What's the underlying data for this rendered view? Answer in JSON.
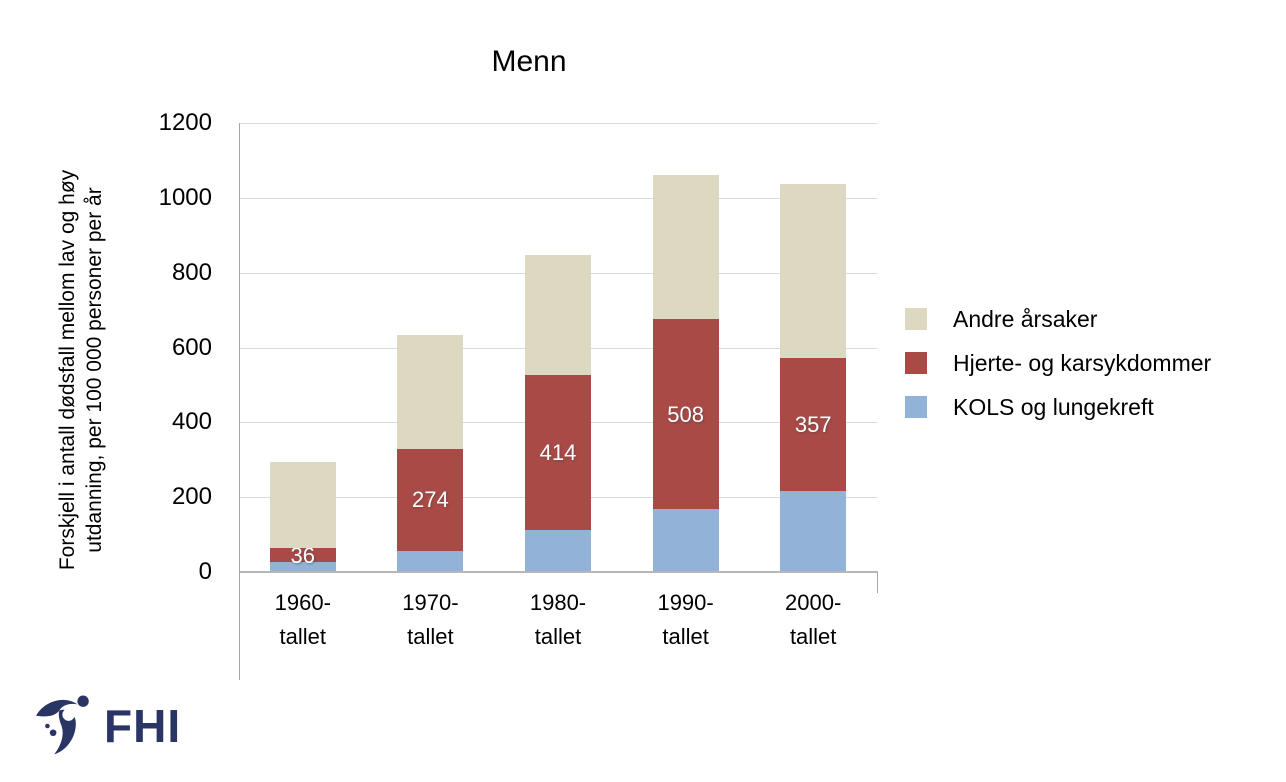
{
  "chart_data": {
    "type": "bar",
    "stacked": true,
    "title": "Menn",
    "ylabel": "Forskjell i antall dødsfall mellom lav og høy utdanning, per 100 000 personer per år",
    "ylabel_lines": [
      "Forskjell i antall dødsfall mellom lav og høy",
      "utdanning, per 100 000 personer per år"
    ],
    "xlabel": "",
    "categories": [
      "1960-tallet",
      "1970-tallet",
      "1980-tallet",
      "1990-tallet",
      "2000-tallet"
    ],
    "category_display_lines": [
      [
        "1960-",
        "tallet"
      ],
      [
        "1970-",
        "tallet"
      ],
      [
        "1980-",
        "tallet"
      ],
      [
        "1990-",
        "tallet"
      ],
      [
        "2000-",
        "tallet"
      ]
    ],
    "series": [
      {
        "name": "KOLS og lungekreft",
        "color": "#92b2d8",
        "values": [
          27,
          56,
          112,
          168,
          216
        ],
        "show_labels": false
      },
      {
        "name": "Hjerte- og karsykdommer",
        "color": "#aa4a47",
        "values": [
          36,
          274,
          414,
          508,
          357
        ],
        "show_labels": true,
        "label_color": "#ffffff",
        "labels": [
          "36",
          "274",
          "414",
          "508",
          "357"
        ]
      },
      {
        "name": "Andre årsaker",
        "color": "#dcd8c2",
        "values": [
          231,
          304,
          322,
          385,
          463
        ],
        "show_labels": false
      }
    ],
    "ylim": [
      0,
      1200
    ],
    "yticks": [
      0,
      200,
      400,
      600,
      800,
      1000,
      1200
    ],
    "grid": true,
    "legend_position": "right",
    "legend_order": "reversed"
  },
  "logo": {
    "text": "FHI",
    "color": "#2b3565"
  }
}
